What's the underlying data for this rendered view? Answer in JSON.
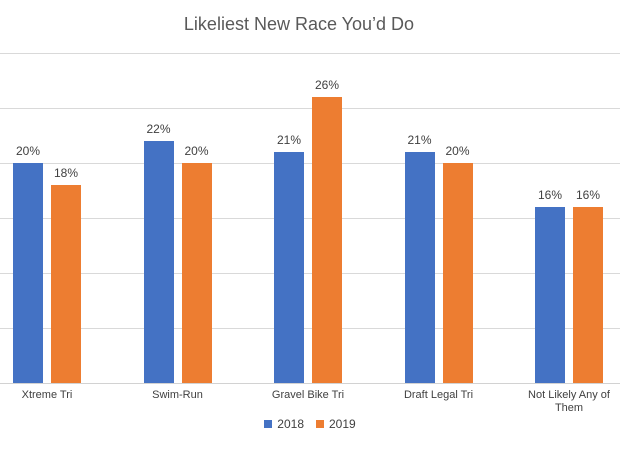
{
  "title": "Likeliest New Race You’d Do",
  "colors": {
    "series_2018": "#4472C4",
    "series_2019": "#ED7D31",
    "gridline": "#D9D9D9",
    "axis_line": "#D2D2D2",
    "title_text": "#595959",
    "label_text": "#404040",
    "background": "#FFFFFF"
  },
  "legend": {
    "position": "bottom",
    "items": [
      {
        "label": "2018",
        "color": "#4472C4"
      },
      {
        "label": "2019",
        "color": "#ED7D31"
      }
    ]
  },
  "chart_data": {
    "type": "bar",
    "title": "Likeliest New Race You’d Do",
    "xlabel": "",
    "ylabel": "",
    "categories": [
      "Xtreme Tri",
      "Swim-Run",
      "Gravel Bike Tri",
      "Draft Legal Tri",
      "Not Likely Any of Them"
    ],
    "series": [
      {
        "name": "2018",
        "color": "#4472C4",
        "values": [
          20,
          22,
          21,
          21,
          16
        ],
        "labels": [
          "20%",
          "22%",
          "21%",
          "21%",
          "16%"
        ]
      },
      {
        "name": "2019",
        "color": "#ED7D31",
        "values": [
          18,
          20,
          26,
          20,
          16
        ],
        "labels": [
          "18%",
          "20%",
          "26%",
          "20%",
          "16%"
        ]
      }
    ],
    "value_suffix": "%",
    "ylim": [
      0,
      30
    ],
    "gridline_interval": 5,
    "grid": true,
    "y_axis_labels_visible": false,
    "legend_position": "bottom"
  }
}
